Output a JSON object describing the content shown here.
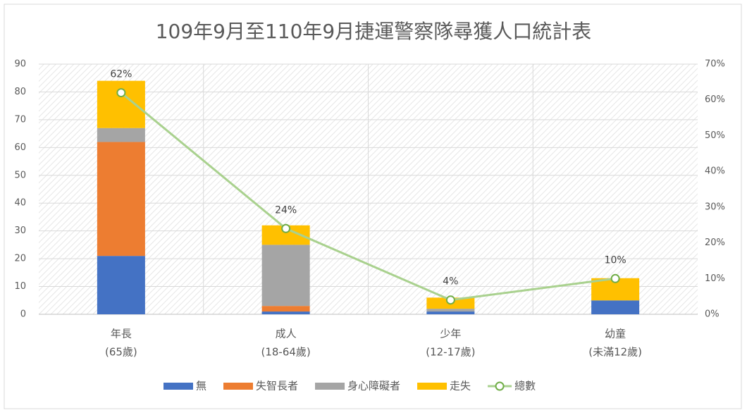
{
  "chart_data": {
    "type": "bar",
    "stacked": true,
    "title": "109年9月至110年9月捷運警察隊尋獲人口統計表",
    "categories": [
      [
        "年長",
        "(65歲)"
      ],
      [
        "成人",
        "(18-64歲)"
      ],
      [
        "少年",
        "(12-17歲)"
      ],
      [
        "幼童",
        "(未滿12歲)"
      ]
    ],
    "series": [
      {
        "name": "無",
        "color": "#4472c4",
        "values": [
          21,
          1,
          1,
          5
        ]
      },
      {
        "name": "失智長者",
        "color": "#ed7d31",
        "values": [
          41,
          2,
          0,
          0
        ]
      },
      {
        "name": "身心障礙者",
        "color": "#a5a5a5",
        "values": [
          5,
          22,
          1,
          0
        ]
      },
      {
        "name": "走失",
        "color": "#ffc000",
        "values": [
          17,
          7,
          4,
          8
        ]
      },
      {
        "name": "總數",
        "type": "line",
        "axis": "y2",
        "color": "#a9d18e",
        "marker_color": "#70ad47",
        "values": [
          62,
          24,
          4,
          10
        ],
        "value_labels": [
          "62%",
          "24%",
          "4%",
          "10%"
        ]
      }
    ],
    "ylim": [
      0,
      90
    ],
    "yticks": [
      0,
      10,
      20,
      30,
      40,
      50,
      60,
      70,
      80,
      90
    ],
    "y2lim": [
      0,
      70
    ],
    "y2ticks": [
      {
        "value": 0,
        "label": "0%"
      },
      {
        "value": 10,
        "label": "10%"
      },
      {
        "value": 20,
        "label": "20%"
      },
      {
        "value": 30,
        "label": "30%"
      },
      {
        "value": 40,
        "label": "40%"
      },
      {
        "value": 50,
        "label": "50%"
      },
      {
        "value": 60,
        "label": "60%"
      },
      {
        "value": 70,
        "label": "70%"
      }
    ],
    "grid": true,
    "legend": "bottom"
  }
}
